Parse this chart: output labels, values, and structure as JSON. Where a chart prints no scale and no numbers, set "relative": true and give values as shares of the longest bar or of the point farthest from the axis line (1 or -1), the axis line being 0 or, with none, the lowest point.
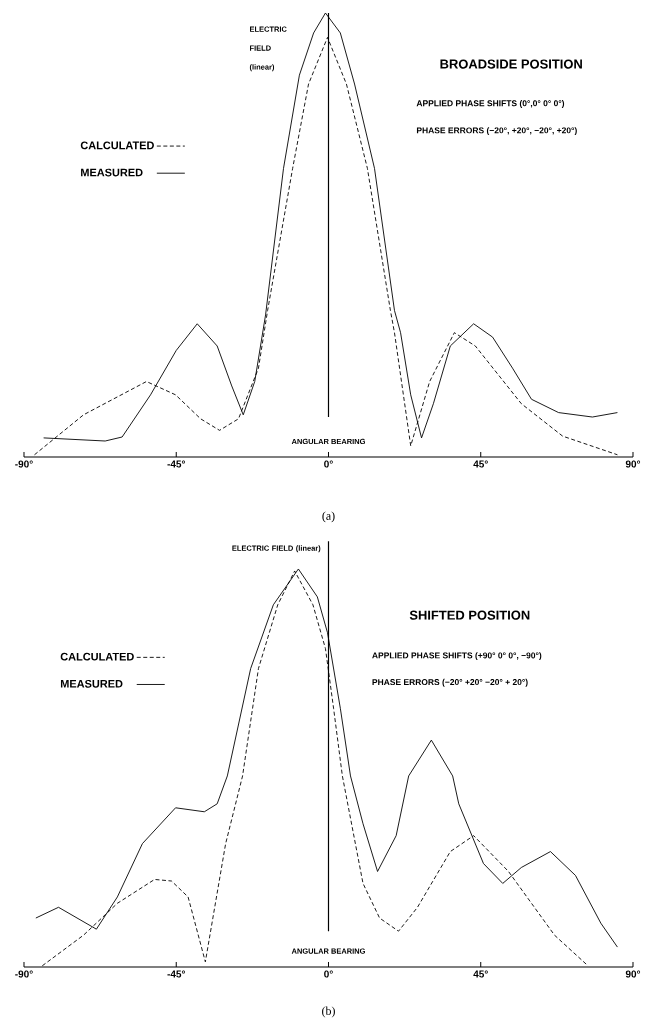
{
  "chart_data": [
    {
      "type": "line",
      "relative": true,
      "title": "BROADSIDE POSITION",
      "xlabel": "ANGULAR BEARING",
      "ylabel": "ELECTRIC FIELD (linear)",
      "annotations": [
        "APPLIED PHASE SHIFTS (0°,0° 0° 0°)",
        "PHASE ERRORS (−20°, +20°, −20°, +20°)",
        "(a)"
      ],
      "xlim": [
        -90,
        90
      ],
      "xticks": [
        {
          "value": -90,
          "label": "-90°"
        },
        {
          "value": -45,
          "label": "-45°"
        },
        {
          "value": 0,
          "label": "0°"
        },
        {
          "value": 45,
          "label": "45°"
        },
        {
          "value": 90,
          "label": "90°"
        }
      ],
      "tick_labels": "x",
      "legend": "left",
      "ref_lines": [
        {
          "axis": "x",
          "value": 0,
          "color": "#000000"
        }
      ],
      "series": [
        {
          "name": "CALCULATED",
          "color": "#000000",
          "line_style": "dashed",
          "x": [
            -86.9,
            -72.4,
            -53.8,
            -45.2,
            -37.8,
            -32.2,
            -26.6,
            -20.7,
            -18,
            -10.6,
            -5.9,
            -0.3,
            5.3,
            11.5,
            18.3,
            19.5,
            24.3,
            29.9,
            37.2,
            43.4,
            57,
            69.2,
            85.4
          ],
          "values": [
            0.005,
            0.095,
            0.17,
            0.14,
            0.086,
            0.06,
            0.086,
            0.2,
            0.33,
            0.65,
            0.84,
            0.945,
            0.84,
            0.65,
            0.33,
            0.28,
            0.025,
            0.17,
            0.28,
            0.25,
            0.12,
            0.047,
            0.005
          ]
        },
        {
          "name": "MEASURED",
          "color": "#000000",
          "line_style": "solid",
          "x": [
            -84.2,
            -66,
            -61,
            -52.6,
            -45,
            -38.8,
            -32.9,
            -28.6,
            -25.2,
            -21.8,
            -18.6,
            -13.3,
            -8.6,
            -4.4,
            -0.9,
            3.5,
            7.7,
            13.6,
            19.5,
            21.3,
            24.3,
            27.5,
            31,
            36,
            42.9,
            48.5,
            54.4,
            60,
            68,
            78,
            85.4
          ],
          "values": [
            0.043,
            0.036,
            0.045,
            0.14,
            0.24,
            0.3,
            0.25,
            0.16,
            0.095,
            0.17,
            0.32,
            0.65,
            0.86,
            0.955,
            1.0,
            0.955,
            0.84,
            0.65,
            0.33,
            0.28,
            0.14,
            0.043,
            0.12,
            0.25,
            0.3,
            0.27,
            0.2,
            0.13,
            0.1,
            0.09,
            0.1
          ]
        }
      ]
    },
    {
      "type": "line",
      "relative": true,
      "title": "SHIFTED POSITION",
      "xlabel": "ANGULAR BEARING",
      "ylabel": "ELECTRIC FIELD (linear)",
      "annotations": [
        "APPLIED PHASE SHIFTS (+90° 0° 0°, −90°)",
        "PHASE ERRORS (−20° +20° −20° + 20°)",
        "(b)"
      ],
      "xlim": [
        -90,
        90
      ],
      "xticks": [
        {
          "value": -90,
          "label": "-90°"
        },
        {
          "value": -45,
          "label": "-45°"
        },
        {
          "value": 0,
          "label": "0°"
        },
        {
          "value": 45,
          "label": "45°"
        },
        {
          "value": 90,
          "label": "90°"
        }
      ],
      "tick_labels": "x",
      "legend": "left",
      "ref_lines": [
        {
          "axis": "x",
          "value": 0,
          "color": "#000000"
        }
      ],
      "series": [
        {
          "name": "CALCULATED",
          "color": "#000000",
          "line_style": "dashed",
          "x": [
            -84.6,
            -72.4,
            -62.4,
            -51.4,
            -46.4,
            -41.5,
            -36.4,
            -30.4,
            -25.4,
            -20.7,
            -15,
            -10,
            -4.6,
            -0.9,
            1.5,
            4.1,
            10.2,
            15.1,
            20.7,
            26.3,
            36,
            42.9,
            53.2,
            66.8,
            76.7
          ],
          "values": [
            0.003,
            0.08,
            0.16,
            0.22,
            0.216,
            0.176,
            0.013,
            0.31,
            0.48,
            0.75,
            0.91,
            0.995,
            0.91,
            0.8,
            0.65,
            0.48,
            0.21,
            0.123,
            0.09,
            0.15,
            0.29,
            0.33,
            0.24,
            0.08,
            0.003
          ]
        },
        {
          "name": "MEASURED",
          "color": "#000000",
          "line_style": "solid",
          "x": [
            -86.5,
            -79.8,
            -68.6,
            -62.4,
            -55,
            -45.2,
            -36.7,
            -32.9,
            -29.9,
            -23,
            -16.3,
            -8.9,
            -3.3,
            -0.3,
            3.5,
            6.5,
            10.2,
            14.5,
            20,
            23.7,
            30.4,
            36.7,
            38.5,
            45.8,
            51.5,
            57,
            65.6,
            73,
            80.5,
            85.4
          ],
          "values": [
            0.123,
            0.15,
            0.095,
            0.176,
            0.31,
            0.4,
            0.39,
            0.41,
            0.48,
            0.75,
            0.91,
            1.0,
            0.93,
            0.84,
            0.65,
            0.48,
            0.36,
            0.24,
            0.33,
            0.48,
            0.57,
            0.48,
            0.41,
            0.26,
            0.21,
            0.25,
            0.29,
            0.23,
            0.11,
            0.05
          ]
        }
      ]
    }
  ]
}
